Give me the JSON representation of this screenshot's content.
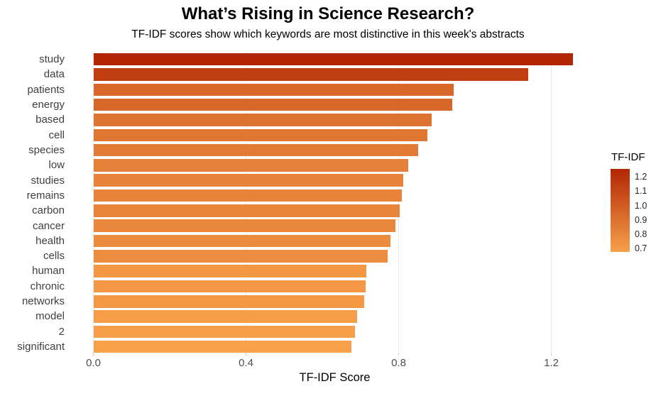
{
  "chart_data": {
    "type": "bar",
    "orientation": "horizontal",
    "title": "What’s Rising in Science Research?",
    "subtitle": "TF-IDF scores show which keywords are most distinctive in this week's abstracts",
    "xlabel": "TF-IDF Score",
    "ylabel": "",
    "categories": [
      "study",
      "data",
      "patients",
      "energy",
      "based",
      "cell",
      "species",
      "low",
      "studies",
      "remains",
      "carbon",
      "cancer",
      "health",
      "cells",
      "human",
      "chronic",
      "networks",
      "model",
      "2",
      "significant"
    ],
    "values": [
      1.256,
      1.14,
      0.944,
      0.94,
      0.886,
      0.876,
      0.852,
      0.826,
      0.812,
      0.809,
      0.802,
      0.791,
      0.778,
      0.772,
      0.716,
      0.713,
      0.709,
      0.691,
      0.685,
      0.676
    ],
    "xlim": [
      0,
      1.266
    ],
    "x_ticks": [
      0,
      0.4,
      0.8,
      1.2
    ],
    "x_tick_labels": [
      "0.0",
      "0.4",
      "0.8",
      "1.2"
    ],
    "grid": "major-vertical-only",
    "legend": {
      "title": "TF-IDF",
      "position": "right",
      "type": "colorbar",
      "tick_values": [
        1.2,
        1.1,
        1.0,
        0.9,
        0.8,
        0.7
      ],
      "tick_labels": [
        "1.2",
        "1.1",
        "1.0",
        "0.9",
        "0.8",
        "0.7"
      ]
    },
    "color_scale": {
      "low_color": "#F7A04A",
      "high_color": "#B22604",
      "domain": [
        0.676,
        1.256
      ]
    },
    "colors": {
      "background": "#FFFFFF",
      "gridline": "#E8E8E8",
      "axis_tick_text": "#4D4D4D",
      "category_text": "#3F3F3F",
      "title_text": "#000000"
    }
  }
}
